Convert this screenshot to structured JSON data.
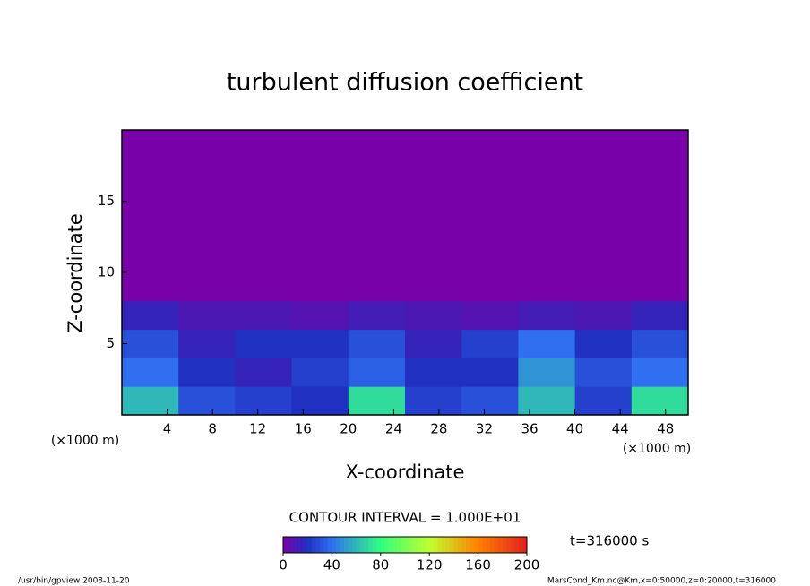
{
  "chart_data": {
    "type": "contour",
    "title": "turbulent diffusion coefficient",
    "xlabel": "X-coordinate",
    "ylabel": "Z-coordinate",
    "x_unit": "(×1000 m)",
    "xlim": [
      0,
      50
    ],
    "ylim": [
      0,
      20
    ],
    "xticks": [
      4,
      8,
      12,
      16,
      20,
      24,
      28,
      32,
      36,
      40,
      44,
      48
    ],
    "yticks": [
      5,
      10,
      15
    ],
    "x": [
      2.5,
      7.5,
      12.5,
      17.5,
      22.5,
      27.5,
      32.5,
      37.5,
      42.5,
      47.5
    ],
    "z": [
      1,
      3,
      5,
      7,
      9,
      11,
      13,
      15,
      17,
      19
    ],
    "values": [
      [
        60,
        30,
        25,
        20,
        70,
        25,
        30,
        60,
        25,
        70
      ],
      [
        40,
        20,
        15,
        25,
        35,
        20,
        20,
        50,
        30,
        40
      ],
      [
        30,
        15,
        20,
        20,
        30,
        15,
        25,
        40,
        20,
        30
      ],
      [
        15,
        10,
        10,
        8,
        12,
        10,
        8,
        12,
        10,
        15
      ],
      [
        0,
        0,
        0,
        0,
        0,
        0,
        0,
        0,
        0,
        0
      ],
      [
        0,
        0,
        0,
        0,
        0,
        0,
        0,
        0,
        0,
        0
      ],
      [
        0,
        0,
        0,
        0,
        0,
        0,
        0,
        0,
        0,
        0
      ],
      [
        0,
        0,
        0,
        0,
        0,
        0,
        0,
        0,
        0,
        0
      ],
      [
        0,
        0,
        0,
        0,
        0,
        0,
        0,
        0,
        0,
        0
      ],
      [
        0,
        0,
        0,
        0,
        0,
        0,
        0,
        0,
        0,
        0
      ]
    ],
    "colormap": [
      {
        "value": 0,
        "color": "#7800a8"
      },
      {
        "value": 20,
        "color": "#2030c0"
      },
      {
        "value": 40,
        "color": "#3070f0"
      },
      {
        "value": 80,
        "color": "#30ff80"
      },
      {
        "value": 120,
        "color": "#c0ff30"
      },
      {
        "value": 160,
        "color": "#ff8000"
      },
      {
        "value": 200,
        "color": "#e02020"
      }
    ],
    "colorbar": {
      "label": "CONTOUR INTERVAL = 1.000E+01",
      "lim": [
        0,
        200
      ],
      "ticks": [
        0,
        40,
        80,
        120,
        160,
        200
      ]
    },
    "time_label": "t=316000 s",
    "footer_left": "/usr/bin/gpview  2008-11-20",
    "footer_right": "MarsCond_Km.nc@Km,x=0:50000,z=0:20000,t=316000"
  }
}
